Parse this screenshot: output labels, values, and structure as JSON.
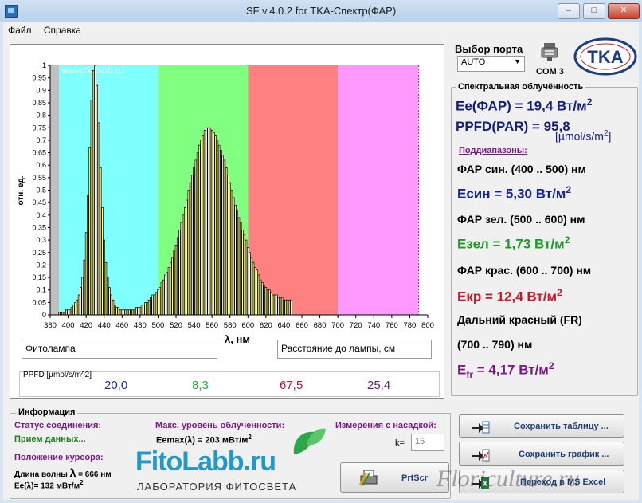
{
  "window": {
    "title": "SF v.4.0.2 for TKA-Спектр(ФАР)",
    "min": "–",
    "max": "□",
    "close": "✕"
  },
  "menu": [
    "Файл",
    "Справка"
  ],
  "port": {
    "label": "Выбор порта",
    "selected": "AUTO",
    "com": "COM 3",
    "logo": "TKA"
  },
  "irradiance": {
    "heading": "Спектральная облучённость",
    "ee_far": "Ee(ФАР) = 19,4 Вт/м",
    "ppfd": "PPFD(PAR) = 95,8",
    "ppfd_unit": "[µmol/s/m",
    "sub_heading": "Поддиапазоны:",
    "blue_label": "ФАР син. (400 .. 500) нм",
    "blue_value": "Eсин = 5,30 Вт/м",
    "green_label": "ФАР зел. (500 .. 600) нм",
    "green_value": "Eзел = 1,73 Вт/м",
    "red_label": "ФАР крас. (600 .. 700) нм",
    "red_value": "Eкр = 12,4 Вт/м",
    "fr_label1": "Дальний красный (FR)",
    "fr_label2": "(700 .. 790) нм",
    "fr_value_main": "E",
    "fr_value_sub": "fr",
    "fr_value_rest": " = 4,17 Вт/м",
    "sup2": "2",
    "ppfd_unit_end": "]"
  },
  "chart_data": {
    "type": "bar",
    "ylabel": "отн. ед.",
    "xlabel": "λ, нм",
    "xlim": [
      380,
      800
    ],
    "ylim": [
      0,
      1
    ],
    "xticks": [
      380,
      400,
      420,
      440,
      460,
      480,
      500,
      520,
      540,
      560,
      580,
      600,
      620,
      640,
      660,
      680,
      700,
      720,
      740,
      760,
      780,
      800
    ],
    "yticks": [
      "0",
      "0,05",
      "0,1",
      "0,15",
      "0,2",
      "0,25",
      "0,3",
      "0,35",
      "0,4",
      "0,45",
      "0,5",
      "0,55",
      "0,6",
      "0,65",
      "0,7",
      "0,75",
      "0,8",
      "0,85",
      "0,9",
      "0,95",
      "1"
    ],
    "watermark": "www.tkaspb.ru",
    "bands": [
      {
        "from": 380,
        "to": 390,
        "color": "#c0c0c0"
      },
      {
        "from": 390,
        "to": 500,
        "color": "#80ffff"
      },
      {
        "from": 500,
        "to": 600,
        "color": "#80ff80"
      },
      {
        "from": 600,
        "to": 700,
        "color": "#ff8080"
      },
      {
        "from": 700,
        "to": 790,
        "color": "#ff99ff"
      }
    ],
    "bar_start": 390,
    "bar_step": 2,
    "values": [
      0.01,
      0.01,
      0.01,
      0.01,
      0.02,
      0.02,
      0.02,
      0.03,
      0.04,
      0.05,
      0.06,
      0.08,
      0.11,
      0.15,
      0.22,
      0.33,
      0.48,
      0.67,
      0.86,
      0.98,
      1.0,
      0.92,
      0.77,
      0.59,
      0.43,
      0.3,
      0.21,
      0.15,
      0.11,
      0.08,
      0.06,
      0.04,
      0.03,
      0.03,
      0.02,
      0.02,
      0.02,
      0.02,
      0.02,
      0.02,
      0.02,
      0.02,
      0.02,
      0.03,
      0.03,
      0.03,
      0.04,
      0.04,
      0.05,
      0.05,
      0.06,
      0.07,
      0.08,
      0.08,
      0.09,
      0.1,
      0.11,
      0.13,
      0.14,
      0.16,
      0.17,
      0.19,
      0.21,
      0.23,
      0.26,
      0.28,
      0.31,
      0.34,
      0.37,
      0.4,
      0.43,
      0.46,
      0.5,
      0.53,
      0.56,
      0.59,
      0.62,
      0.65,
      0.68,
      0.7,
      0.72,
      0.74,
      0.75,
      0.75,
      0.75,
      0.74,
      0.73,
      0.72,
      0.7,
      0.68,
      0.66,
      0.64,
      0.62,
      0.59,
      0.56,
      0.53,
      0.5,
      0.47,
      0.44,
      0.42,
      0.39,
      0.37,
      0.34,
      0.32,
      0.3,
      0.27,
      0.25,
      0.23,
      0.21,
      0.19,
      0.18,
      0.16,
      0.14,
      0.13,
      0.12,
      0.11,
      0.1,
      0.1,
      0.09,
      0.08,
      0.08,
      0.08,
      0.07,
      0.07,
      0.07,
      0.06,
      0.06,
      0.06,
      0.06,
      0.06
    ]
  },
  "sample": {
    "name": "Фитолампа",
    "distance_label": "Расстояние до лампы,  см"
  },
  "ppfd_row": {
    "label": "PPFD [µmol/s/m^2]",
    "blue": "20,0",
    "green": "8,3",
    "red": "67,5",
    "fr": "25,4"
  },
  "info": {
    "legend": "Информация",
    "status_label": "Статус соединения:",
    "status_value": "Прием данных...",
    "cursor_label": "Положение курсора:",
    "wave_label": "Длина волны",
    "lambda": "λ",
    "wave_value": "= 666 нм",
    "ee_cursor": "Ee(λ)= 132 мВт/м",
    "max_label": "Макс. уровень облученности:",
    "eemax": "Eemax(λ) = 203 мВт/м",
    "nozzle_label": "Измерения с насадкой:",
    "k_label": "k=",
    "k_value": "15"
  },
  "brand": {
    "name": "FitoLabb.ru",
    "tagline": "ЛАБОРАТОРИЯ ФИТОСВЕТА"
  },
  "buttons": {
    "save_table": "Сохранить таблицу ...",
    "save_graph": "Сохранить график ...",
    "prtscr": "PrtScr",
    "excel": "Переход в MS Excel"
  },
  "watermark_corner": "Floriculture.ru"
}
